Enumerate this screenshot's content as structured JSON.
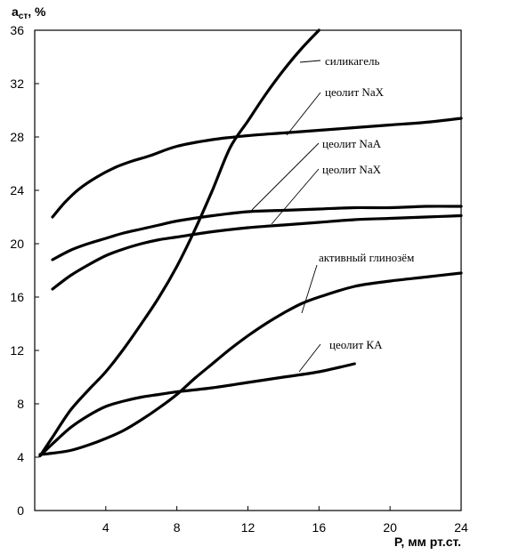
{
  "chart_data": {
    "type": "line",
    "title": "",
    "ylabel_main": "a",
    "ylabel_sub": "ст",
    "ylabel_unit": ", %",
    "xlabel": "P, мм рт.ст.",
    "xlim": [
      0,
      24
    ],
    "ylim": [
      0,
      36
    ],
    "x_ticks": [
      4,
      8,
      12,
      16,
      20,
      24
    ],
    "y_ticks": [
      0,
      4,
      8,
      12,
      16,
      20,
      24,
      28,
      32,
      36
    ],
    "grid": false,
    "series": [
      {
        "name": "силикагель",
        "x": [
          0.3,
          1,
          2,
          3,
          4,
          5,
          6,
          7,
          8,
          9,
          10,
          11,
          12,
          13,
          14,
          15,
          16
        ],
        "y": [
          4.1,
          5.5,
          7.5,
          9,
          10.4,
          12.1,
          14,
          16,
          18.3,
          21,
          24,
          27.2,
          29.2,
          31.2,
          33,
          34.6,
          36
        ]
      },
      {
        "name": "цеолит  NaX",
        "x": [
          1,
          1.7,
          2.5,
          3.5,
          4.5,
          5.5,
          6.5,
          8,
          10,
          12,
          14,
          16,
          18,
          20,
          22,
          24
        ],
        "y": [
          22,
          23.1,
          24.1,
          25,
          25.7,
          26.2,
          26.6,
          27.3,
          27.8,
          28.1,
          28.3,
          28.5,
          28.7,
          28.9,
          29.1,
          29.4
        ]
      },
      {
        "name": "цеолит  NaA",
        "x": [
          1,
          2,
          3,
          4,
          5,
          6,
          7,
          8,
          10,
          12,
          14,
          16,
          18,
          20,
          22,
          24
        ],
        "y": [
          18.8,
          19.5,
          20,
          20.4,
          20.8,
          21.1,
          21.4,
          21.7,
          22.1,
          22.4,
          22.5,
          22.6,
          22.7,
          22.7,
          22.8,
          22.8
        ]
      },
      {
        "name": "цеолит  NaX",
        "x": [
          1,
          2,
          3,
          4,
          5,
          6,
          7,
          8,
          10,
          12,
          14,
          16,
          18,
          20,
          22,
          24
        ],
        "y": [
          16.6,
          17.6,
          18.4,
          19.1,
          19.6,
          20,
          20.3,
          20.5,
          20.9,
          21.2,
          21.4,
          21.6,
          21.8,
          21.9,
          22,
          22.1
        ]
      },
      {
        "name": "активный глинозём",
        "x": [
          0.3,
          1,
          2,
          3,
          4,
          5,
          6,
          7,
          8,
          9,
          10,
          11,
          12,
          13,
          14,
          15,
          16,
          18,
          20,
          22,
          24
        ],
        "y": [
          4.2,
          4.3,
          4.5,
          4.9,
          5.4,
          6,
          6.8,
          7.7,
          8.7,
          9.9,
          11,
          12.1,
          13.1,
          14,
          14.8,
          15.5,
          16,
          16.8,
          17.2,
          17.5,
          17.8
        ]
      },
      {
        "name": "цеолит  КА",
        "x": [
          0.3,
          1,
          2,
          3,
          4,
          5,
          6,
          7,
          8,
          10,
          12,
          14,
          16,
          18
        ],
        "y": [
          4.1,
          5,
          6.2,
          7.1,
          7.8,
          8.2,
          8.5,
          8.7,
          8.9,
          9.2,
          9.6,
          10,
          10.4,
          11
        ]
      }
    ]
  }
}
